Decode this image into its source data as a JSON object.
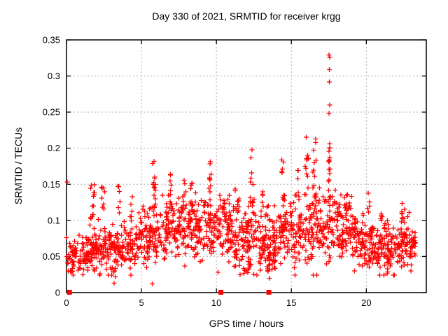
{
  "chart_data": {
    "type": "scatter",
    "title": "Day 330 of 2021, SRMTID for receiver krgg",
    "xlabel": "GPS time / hours",
    "ylabel": "SRMTID / TECUs",
    "xlim": [
      0,
      24
    ],
    "ylim": [
      0,
      0.35
    ],
    "xticks": [
      0,
      5,
      10,
      15,
      20
    ],
    "xtick_labels": [
      "0",
      "5",
      "10",
      "15",
      "20"
    ],
    "yticks": [
      0,
      0.05,
      0.1,
      0.15,
      0.2,
      0.25,
      0.3,
      0.35
    ],
    "ytick_labels": [
      "0",
      "0.05",
      "0.1",
      "0.15",
      "0.2",
      "0.25",
      "0.3",
      "0.35"
    ],
    "grid": true,
    "legend": "none",
    "marker": "plus",
    "marker_color": "#ff0000",
    "grid_color": "#b0b0b0",
    "border_color": "#000000",
    "background": "#ffffff",
    "seed": 7,
    "zero_value_markers": {
      "shape": "filled-square",
      "points": [
        [
          0.2,
          0
        ],
        [
          10.3,
          0
        ],
        [
          13.5,
          0
        ]
      ]
    },
    "notable_points": [
      [
        17.52,
        0.329
      ],
      [
        17.56,
        0.326
      ],
      [
        17.54,
        0.309
      ],
      [
        17.53,
        0.292
      ],
      [
        17.56,
        0.26
      ],
      [
        17.52,
        0.248
      ],
      [
        17.55,
        0.206
      ],
      [
        17.5,
        0.196
      ],
      [
        17.58,
        0.171
      ],
      [
        17.51,
        0.156
      ],
      [
        0.05,
        0.153
      ],
      [
        3.18,
        0.013
      ],
      [
        5.72,
        0.012
      ],
      [
        3.28,
        0.022
      ],
      [
        3.22,
        0.03
      ],
      [
        12.5,
        0.025
      ],
      [
        13.55,
        0.02
      ],
      [
        10.12,
        0.028
      ]
    ],
    "band_segments": {
      "fields": [
        "x_start",
        "x_end",
        "count",
        "mean",
        "sd",
        "y_max"
      ],
      "rows": [
        [
          0.0,
          0.7,
          45,
          0.048,
          0.012,
          0.08
        ],
        [
          0.7,
          1.5,
          50,
          0.052,
          0.013,
          0.09
        ],
        [
          1.5,
          2.2,
          55,
          0.06,
          0.016,
          0.115
        ],
        [
          2.2,
          3.0,
          55,
          0.062,
          0.018,
          0.125
        ],
        [
          3.0,
          3.8,
          55,
          0.06,
          0.016,
          0.11
        ],
        [
          3.8,
          4.6,
          50,
          0.068,
          0.016,
          0.115
        ],
        [
          4.6,
          5.4,
          55,
          0.075,
          0.018,
          0.12
        ],
        [
          5.4,
          6.2,
          55,
          0.08,
          0.02,
          0.13
        ],
        [
          6.2,
          7.0,
          55,
          0.085,
          0.02,
          0.135
        ],
        [
          7.0,
          7.8,
          55,
          0.09,
          0.02,
          0.14
        ],
        [
          7.8,
          8.6,
          55,
          0.088,
          0.02,
          0.145
        ],
        [
          8.6,
          9.4,
          55,
          0.09,
          0.02,
          0.14
        ],
        [
          9.4,
          10.2,
          55,
          0.09,
          0.02,
          0.145
        ],
        [
          10.2,
          11.0,
          55,
          0.085,
          0.02,
          0.135
        ],
        [
          11.0,
          11.8,
          55,
          0.08,
          0.022,
          0.13
        ],
        [
          11.8,
          12.3,
          12,
          0.035,
          0.007,
          0.05
        ],
        [
          11.8,
          12.6,
          55,
          0.082,
          0.022,
          0.135
        ],
        [
          12.6,
          13.4,
          55,
          0.075,
          0.02,
          0.125
        ],
        [
          13.3,
          13.9,
          18,
          0.042,
          0.008,
          0.06
        ],
        [
          13.4,
          14.2,
          55,
          0.07,
          0.02,
          0.12
        ],
        [
          14.2,
          15.0,
          55,
          0.08,
          0.022,
          0.13
        ],
        [
          15.0,
          15.8,
          55,
          0.085,
          0.022,
          0.135
        ],
        [
          15.8,
          16.6,
          55,
          0.09,
          0.024,
          0.14
        ],
        [
          16.6,
          17.4,
          55,
          0.095,
          0.025,
          0.145
        ],
        [
          17.4,
          18.2,
          55,
          0.095,
          0.024,
          0.15
        ],
        [
          18.2,
          19.0,
          55,
          0.09,
          0.022,
          0.14
        ],
        [
          19.0,
          19.8,
          55,
          0.075,
          0.018,
          0.125
        ],
        [
          19.8,
          20.6,
          55,
          0.065,
          0.015,
          0.12
        ],
        [
          20.6,
          21.4,
          55,
          0.06,
          0.015,
          0.11
        ],
        [
          21.4,
          22.2,
          55,
          0.062,
          0.016,
          0.115
        ],
        [
          22.2,
          23.0,
          60,
          0.068,
          0.018,
          0.12
        ],
        [
          23.0,
          23.35,
          25,
          0.065,
          0.015,
          0.1
        ]
      ]
    },
    "spike_clusters": {
      "fields": [
        "x_center",
        "x_spread",
        "count",
        "y_min",
        "y_max"
      ],
      "rows": [
        [
          1.75,
          0.3,
          14,
          0.1,
          0.155
        ],
        [
          2.45,
          0.25,
          8,
          0.115,
          0.147
        ],
        [
          3.5,
          0.2,
          6,
          0.11,
          0.148
        ],
        [
          4.35,
          0.2,
          5,
          0.105,
          0.135
        ],
        [
          5.85,
          0.25,
          16,
          0.11,
          0.185
        ],
        [
          6.95,
          0.15,
          8,
          0.12,
          0.165
        ],
        [
          7.8,
          0.2,
          8,
          0.115,
          0.158
        ],
        [
          8.35,
          0.25,
          8,
          0.12,
          0.155
        ],
        [
          9.55,
          0.2,
          12,
          0.12,
          0.185
        ],
        [
          10.5,
          0.2,
          7,
          0.115,
          0.15
        ],
        [
          11.35,
          0.2,
          6,
          0.11,
          0.145
        ],
        [
          12.35,
          0.2,
          12,
          0.12,
          0.2
        ],
        [
          13.05,
          0.15,
          5,
          0.11,
          0.14
        ],
        [
          14.45,
          0.2,
          12,
          0.12,
          0.21
        ],
        [
          15.45,
          0.15,
          6,
          0.12,
          0.17
        ],
        [
          16.0,
          0.25,
          14,
          0.13,
          0.227
        ],
        [
          16.55,
          0.25,
          10,
          0.14,
          0.23
        ],
        [
          17.55,
          0.12,
          10,
          0.15,
          0.215
        ],
        [
          18.6,
          0.2,
          6,
          0.11,
          0.14
        ],
        [
          20.15,
          0.15,
          5,
          0.11,
          0.14
        ],
        [
          21.0,
          0.2,
          5,
          0.1,
          0.13
        ],
        [
          22.4,
          0.3,
          8,
          0.1,
          0.126
        ]
      ]
    }
  }
}
